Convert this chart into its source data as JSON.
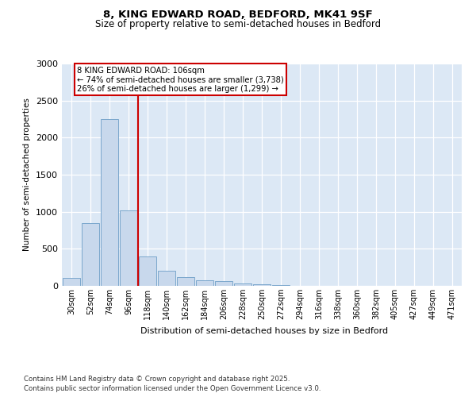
{
  "title1": "8, KING EDWARD ROAD, BEDFORD, MK41 9SF",
  "title2": "Size of property relative to semi-detached houses in Bedford",
  "xlabel": "Distribution of semi-detached houses by size in Bedford",
  "ylabel": "Number of semi-detached properties",
  "bar_labels": [
    "30sqm",
    "52sqm",
    "74sqm",
    "96sqm",
    "118sqm",
    "140sqm",
    "162sqm",
    "184sqm",
    "206sqm",
    "228sqm",
    "250sqm",
    "272sqm",
    "294sqm",
    "316sqm",
    "338sqm",
    "360sqm",
    "382sqm",
    "405sqm",
    "427sqm",
    "449sqm",
    "471sqm"
  ],
  "bar_values": [
    110,
    850,
    2250,
    1020,
    400,
    200,
    115,
    80,
    65,
    35,
    18,
    8,
    4,
    2,
    1,
    0,
    1,
    0,
    0,
    0,
    0
  ],
  "bar_color": "#c8d8ec",
  "bar_edge_color": "#7ba7cc",
  "vline_x_index": 3,
  "vline_color": "#cc0000",
  "annotation_title": "8 KING EDWARD ROAD: 106sqm",
  "annotation_line2": "← 74% of semi-detached houses are smaller (3,738)",
  "annotation_line3": "26% of semi-detached houses are larger (1,299) →",
  "annotation_box_edge_color": "#cc0000",
  "ylim": [
    0,
    3000
  ],
  "yticks": [
    0,
    500,
    1000,
    1500,
    2000,
    2500,
    3000
  ],
  "footer1": "Contains HM Land Registry data © Crown copyright and database right 2025.",
  "footer2": "Contains public sector information licensed under the Open Government Licence v3.0.",
  "fig_bg_color": "#ffffff",
  "plot_bg_color": "#dce8f5"
}
